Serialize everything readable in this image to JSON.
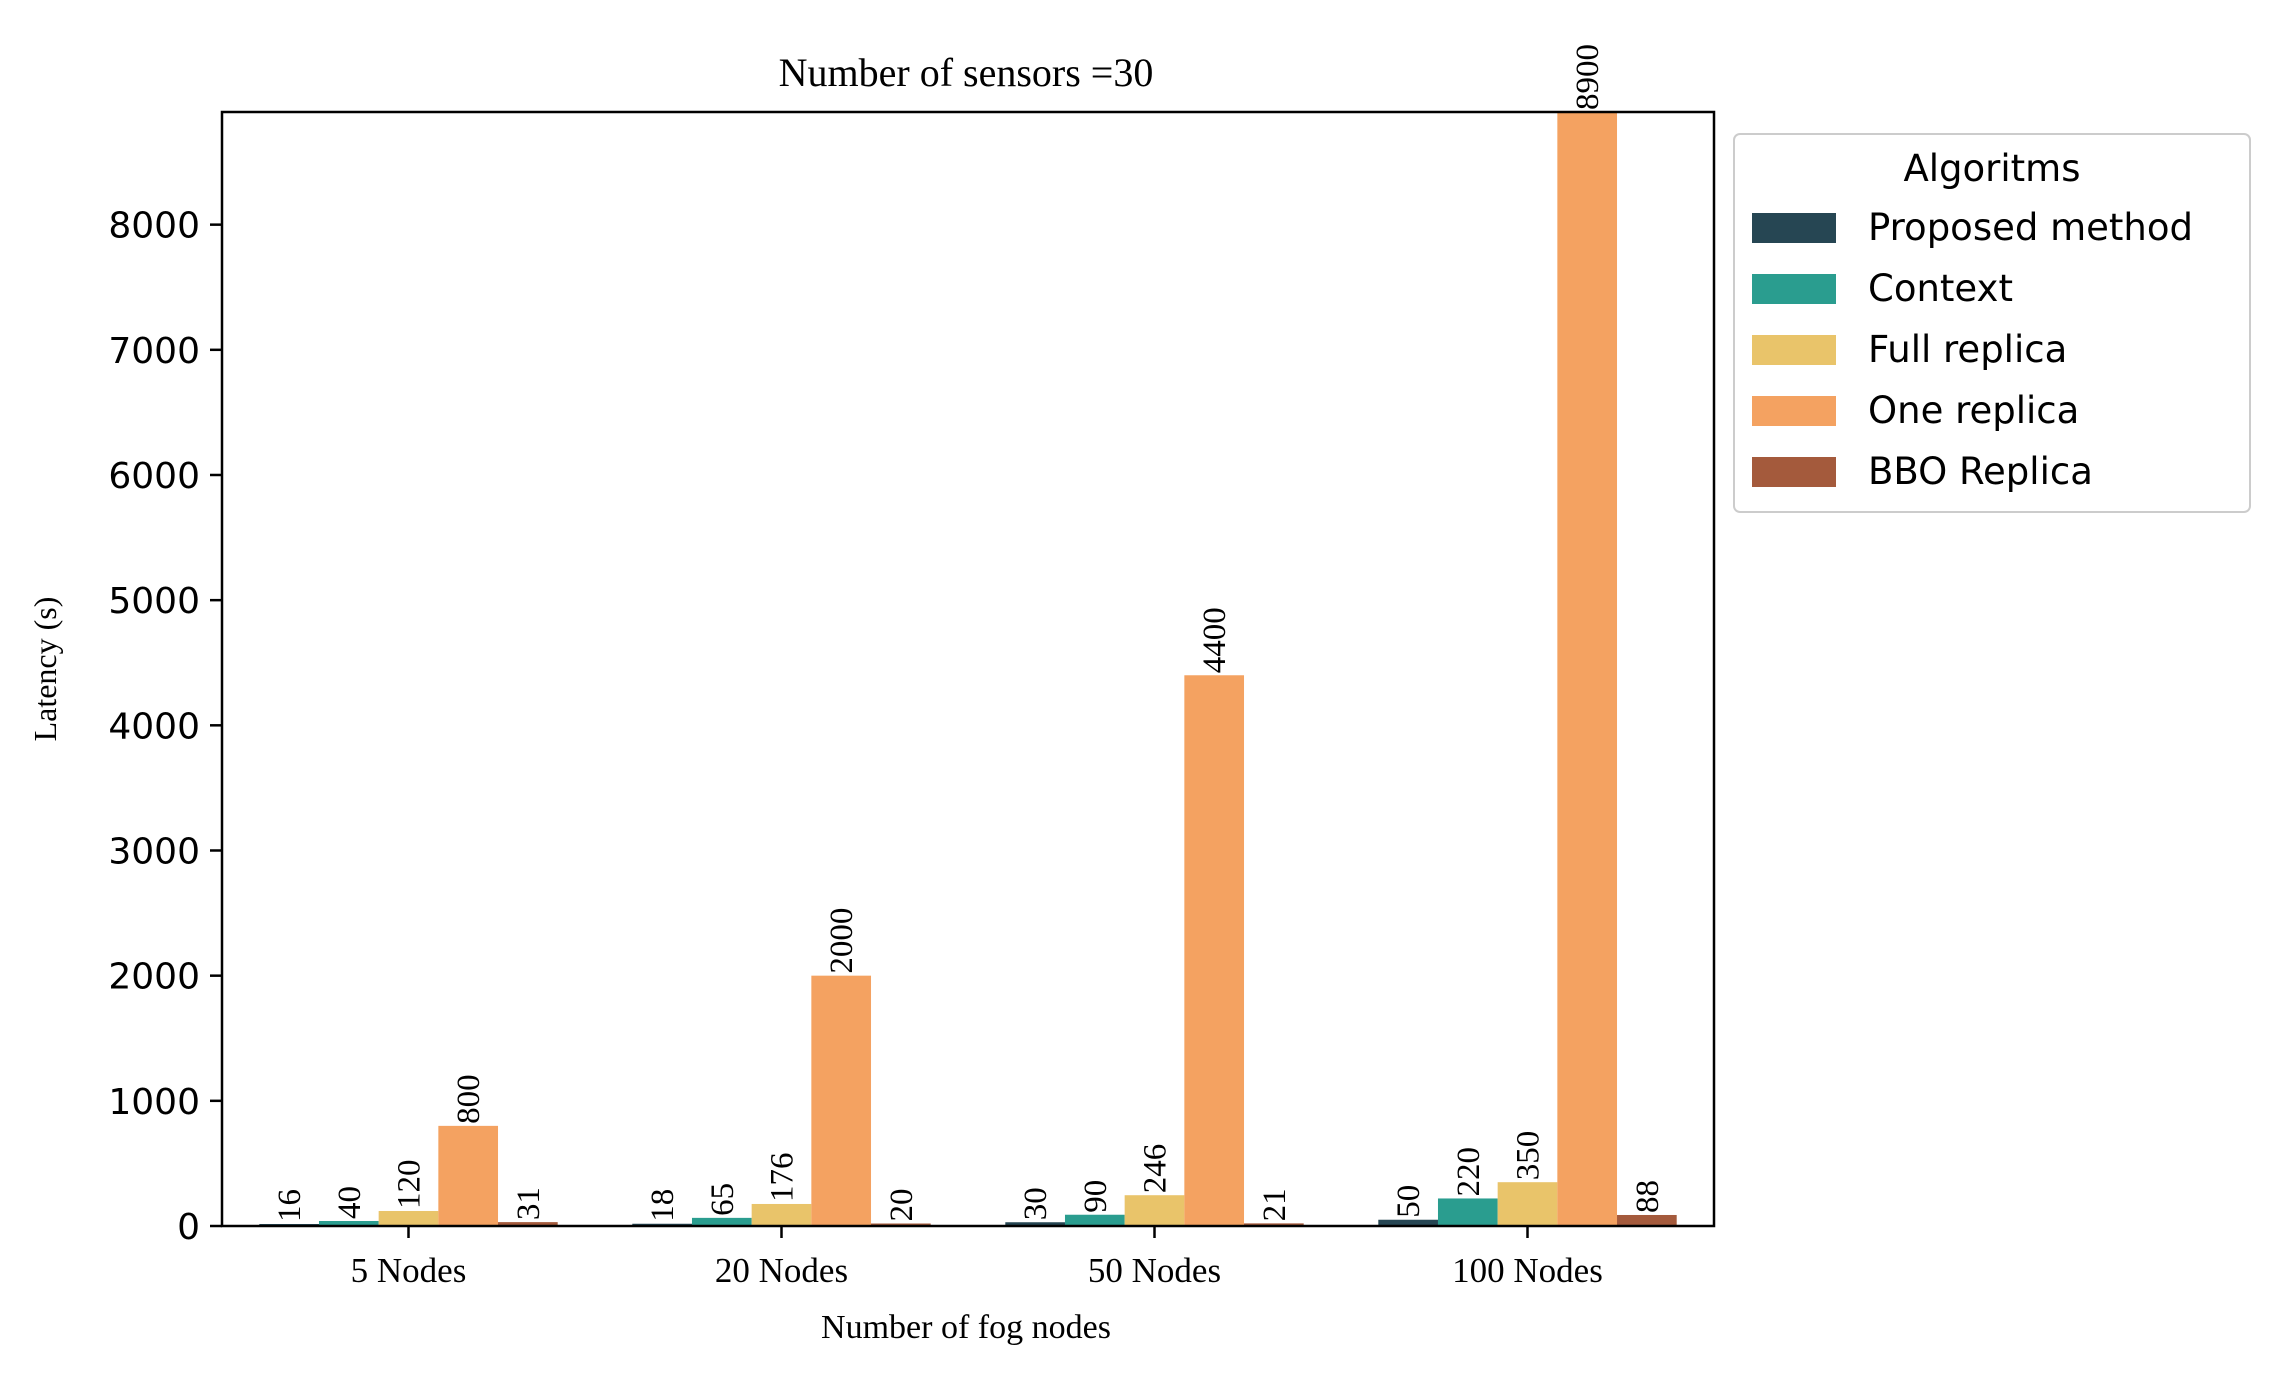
{
  "chart_data": {
    "type": "bar",
    "title": "Number of sensors =30",
    "xlabel": "Number of fog nodes",
    "ylabel": "Latency (s)",
    "categories": [
      "5 Nodes",
      "20 Nodes",
      "50 Nodes",
      "100 Nodes"
    ],
    "ylim": [
      0,
      8900
    ],
    "yticks": [
      0,
      1000,
      2000,
      3000,
      4000,
      5000,
      6000,
      7000,
      8000
    ],
    "grid": false,
    "legend": {
      "title": "Algoritms",
      "placement": "outside-top-right"
    },
    "series": [
      {
        "name": "Proposed method",
        "color": "#264653",
        "values": [
          16,
          18,
          30,
          50
        ]
      },
      {
        "name": "Context",
        "color": "#2a9d8f",
        "values": [
          40,
          65,
          90,
          220
        ]
      },
      {
        "name": "Full replica",
        "color": "#e9c46a",
        "values": [
          120,
          176,
          246,
          350
        ]
      },
      {
        "name": "One replica",
        "color": "#f4a261",
        "values": [
          800,
          2000,
          4400,
          8900
        ]
      },
      {
        "name": "BBO Replica",
        "color": "#a45a3c",
        "values": [
          31,
          20,
          21,
          88
        ]
      }
    ]
  }
}
